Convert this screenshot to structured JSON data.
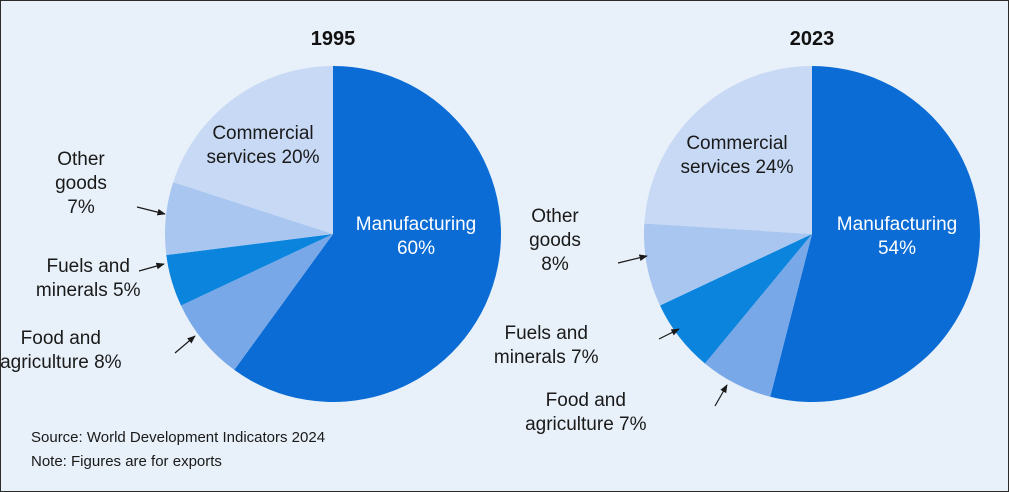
{
  "chart_data": [
    {
      "type": "pie",
      "title": "1995",
      "slices": [
        {
          "name": "Manufacturing",
          "value": 60,
          "label": "60%",
          "color": "#0a6cd4"
        },
        {
          "name": "Food and agriculture",
          "value": 8,
          "label": "8%",
          "color": "#78a8e8"
        },
        {
          "name": "Fuels and minerals",
          "value": 5,
          "label": "5%",
          "color": "#0a84dd"
        },
        {
          "name": "Other goods",
          "value": 7,
          "label": "7%",
          "color": "#a8c6f0"
        },
        {
          "name": "Commercial services",
          "value": 20,
          "label": "20%",
          "color": "#c7d9f4"
        }
      ]
    },
    {
      "type": "pie",
      "title": "2023",
      "slices": [
        {
          "name": "Manufacturing",
          "value": 54,
          "label": "54%",
          "color": "#0a6cd4"
        },
        {
          "name": "Food and agriculture",
          "value": 7,
          "label": "7%",
          "color": "#78a8e8"
        },
        {
          "name": "Fuels and minerals",
          "value": 7,
          "label": "7%",
          "color": "#0a84dd"
        },
        {
          "name": "Other goods",
          "value": 8,
          "label": "8%",
          "color": "#a8c6f0"
        },
        {
          "name": "Commercial services",
          "value": 24,
          "label": "24%",
          "color": "#c7d9f4"
        }
      ]
    }
  ],
  "source": "Source: World Development Indicators 2024",
  "note": "Note: Figures are for exports"
}
